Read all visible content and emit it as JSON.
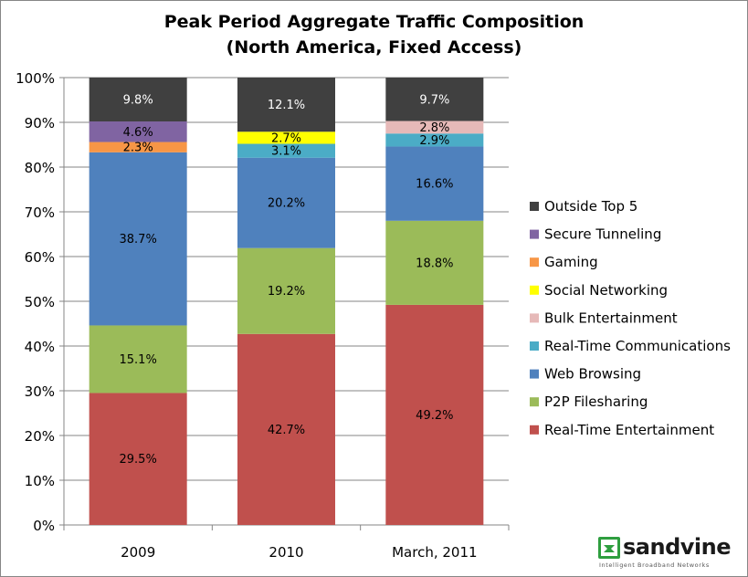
{
  "colors": {
    "Outside Top 5": "#404040",
    "Secure Tunneling": "#8064A2",
    "Gaming": "#F79646",
    "Social Networking": "#FFFF00",
    "Bulk Entertainment": "#E6B9B8",
    "Real-Time Communications": "#4BACC6",
    "Web Browsing": "#4F81BD",
    "P2P Filesharing": "#9BBB59",
    "Real-Time Entertainment": "#C0504D",
    "logo_green": "#2E9E3F"
  },
  "chart_data": {
    "type": "bar",
    "stacked": true,
    "title": "Peak Period Aggregate Traffic Composition",
    "subtitle": "(North America, Fixed Access)",
    "categories": [
      "2009",
      "2010",
      "March, 2011"
    ],
    "ylim": [
      0,
      100
    ],
    "yticks": [
      "0%",
      "10%",
      "20%",
      "30%",
      "40%",
      "50%",
      "60%",
      "70%",
      "80%",
      "90%",
      "100%"
    ],
    "grid": true,
    "legend_position": "right",
    "series": [
      {
        "name": "Real-Time Entertainment",
        "values": [
          29.5,
          42.7,
          49.2
        ],
        "labels": [
          "29.5%",
          "42.7%",
          "49.2%"
        ]
      },
      {
        "name": "P2P Filesharing",
        "values": [
          15.1,
          19.2,
          18.8
        ],
        "labels": [
          "15.1%",
          "19.2%",
          "18.8%"
        ]
      },
      {
        "name": "Web Browsing",
        "values": [
          38.7,
          20.2,
          16.6
        ],
        "labels": [
          "38.7%",
          "20.2%",
          "16.6%"
        ]
      },
      {
        "name": "Real-Time Communications",
        "values": [
          0,
          3.1,
          2.9
        ],
        "labels": [
          "",
          "3.1%",
          "2.9%"
        ]
      },
      {
        "name": "Bulk Entertainment",
        "values": [
          0,
          0,
          2.8
        ],
        "labels": [
          "",
          "",
          "2.8%"
        ]
      },
      {
        "name": "Social Networking",
        "values": [
          0,
          2.7,
          0
        ],
        "labels": [
          "",
          "2.7%",
          ""
        ]
      },
      {
        "name": "Gaming",
        "values": [
          2.3,
          0,
          0
        ],
        "labels": [
          "2.3%",
          "",
          ""
        ]
      },
      {
        "name": "Secure Tunneling",
        "values": [
          4.6,
          0,
          0
        ],
        "labels": [
          "4.6%",
          "",
          ""
        ]
      },
      {
        "name": "Outside Top 5",
        "values": [
          9.8,
          12.1,
          9.7
        ],
        "labels": [
          "9.8%",
          "12.1%",
          "9.7%"
        ]
      }
    ],
    "legend": [
      "Outside Top 5",
      "Secure Tunneling",
      "Gaming",
      "Social Networking",
      "Bulk Entertainment",
      "Real-Time Communications",
      "Web Browsing",
      "P2P Filesharing",
      "Real-Time Entertainment"
    ]
  },
  "logo": {
    "name": "sandvine",
    "tagline": "Intelligent Broadband Networks"
  }
}
